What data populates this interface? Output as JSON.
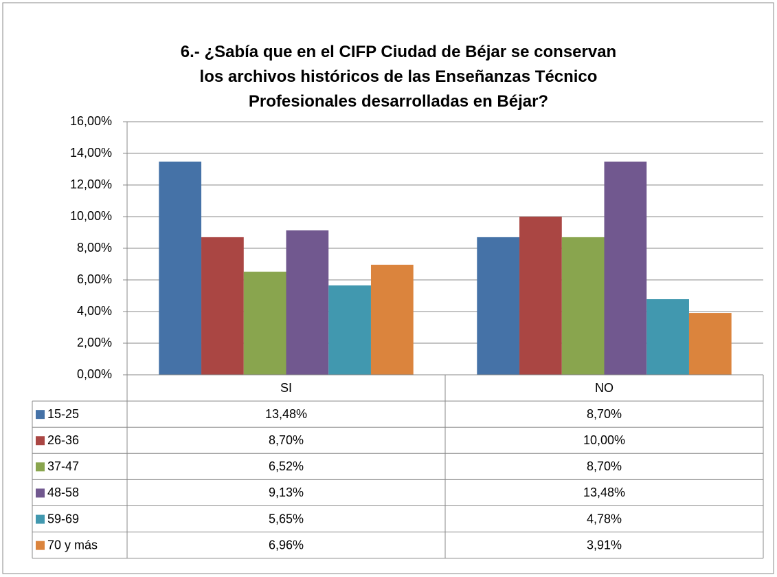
{
  "chart_data": {
    "type": "bar",
    "title": "6.- ¿Sabía que en el CIFP Ciudad de Béjar se conservan los archivos históricos de las Enseñanzas Técnico Profesionales  desarrolladas en Béjar?",
    "categories": [
      "SI",
      "NO"
    ],
    "series": [
      {
        "name": "15-25",
        "color": "#4572a7",
        "values": [
          13.48,
          8.7
        ],
        "value_labels": [
          "13,48%",
          "8,70%"
        ]
      },
      {
        "name": "26-36",
        "color": "#aa4643",
        "values": [
          8.7,
          10.0
        ],
        "value_labels": [
          "8,70%",
          "10,00%"
        ]
      },
      {
        "name": "37-47",
        "color": "#89a54e",
        "values": [
          6.52,
          8.7
        ],
        "value_labels": [
          "6,52%",
          "8,70%"
        ]
      },
      {
        "name": "48-58",
        "color": "#71588f",
        "values": [
          9.13,
          13.48
        ],
        "value_labels": [
          "9,13%",
          "13,48%"
        ]
      },
      {
        "name": "59-69",
        "color": "#4198af",
        "values": [
          5.65,
          4.78
        ],
        "value_labels": [
          "5,65%",
          "4,78%"
        ]
      },
      {
        "name": "70 y más",
        "color": "#db843d",
        "values": [
          6.96,
          3.91
        ],
        "value_labels": [
          "6,96%",
          "3,91%"
        ]
      }
    ],
    "ylim": [
      0,
      16
    ],
    "yticks": [
      {
        "value": 0,
        "label": "0,00%"
      },
      {
        "value": 2,
        "label": "2,00%"
      },
      {
        "value": 4,
        "label": "4,00%"
      },
      {
        "value": 6,
        "label": "6,00%"
      },
      {
        "value": 8,
        "label": "8,00%"
      },
      {
        "value": 10,
        "label": "10,00%"
      },
      {
        "value": 12,
        "label": "12,00%"
      },
      {
        "value": 14,
        "label": "14,00%"
      },
      {
        "value": 16,
        "label": "16,00%"
      }
    ],
    "grid": true
  }
}
